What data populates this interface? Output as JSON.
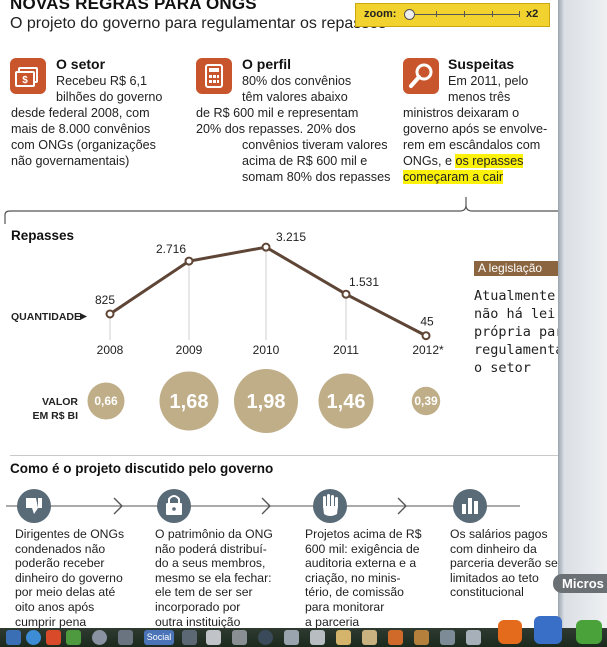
{
  "header": {
    "title": "NOVAS REGRAS PARA ONGS",
    "subtitle": "O projeto do governo para regulamentar os repasses"
  },
  "zoom": {
    "label": "zoom:",
    "max_label": "x2",
    "level_fraction": 0.0
  },
  "sections": [
    {
      "title": "O setor",
      "icon": "money-icon",
      "lines": [
        "Recebeu R$ 6,1",
        "bilhões do governo",
        "desde federal 2008, com",
        "mais de 8.000 convênios",
        "com ONGs (organizações",
        "não governamentais)"
      ]
    },
    {
      "title": "O perfil",
      "icon": "calculator-icon",
      "lines": [
        "80% dos convênios",
        "têm valores abaixo",
        "de R$ 600 mil e representam",
        "20% dos repasses. 20% dos",
        "convênios tiveram valores",
        "acima de R$ 600 mil e",
        "somam 80% dos repasses"
      ]
    },
    {
      "title": "Suspeitas",
      "icon": "magnifier-icon",
      "lines": [
        "Em 2011, pelo",
        "menos três",
        "ministros deixaram o",
        "governo após se envolve-",
        "rem em escândalos com"
      ],
      "line_pre_highlight": "ONGs, e ",
      "highlight_1": "os repasses",
      "highlight_2": "começaram a cair"
    }
  ],
  "chart_data": {
    "type": "line",
    "title": "Repasses",
    "x": [
      "2008",
      "2009",
      "2010",
      "2011",
      "2012*"
    ],
    "series": [
      {
        "name": "QUANTIDADE",
        "values": [
          825,
          2716,
          3215,
          1531,
          45
        ]
      }
    ],
    "value_labels": [
      "825",
      "2.716",
      "3.215",
      "1.531",
      "45"
    ],
    "ylim": [
      0,
      3400
    ],
    "bubbles": {
      "name": "VALOR EM R$ BI",
      "values": [
        0.66,
        1.68,
        1.98,
        1.46,
        0.39
      ],
      "labels": [
        "0,66",
        "1,68",
        "1,98",
        "1,46",
        "0,39"
      ]
    },
    "quantity_label": "QUANTIDADE",
    "valor_label_1": "VALOR",
    "valor_label_2": "EM R$ BI",
    "colors": {
      "line": "#5e4535",
      "bubble": "#bfae88",
      "bubble_text": "#ffffff"
    }
  },
  "legislation": {
    "label": "A legislação",
    "text_lines": [
      "Atualmente,",
      "não há lei",
      "própria para",
      "regulamentar",
      "o setor"
    ]
  },
  "steps": {
    "title": "Como é o projeto discutido pelo governo",
    "items": [
      {
        "icon": "thumbs-down-icon",
        "lines": [
          "Dirigentes de ONGs",
          "condenados não",
          "poderão receber",
          "dinheiro do governo",
          "por meio delas até",
          "oito anos após",
          "cumprir pena"
        ]
      },
      {
        "icon": "padlock-icon",
        "lines": [
          "O patrimônio da ONG",
          "não poderá distribuí-",
          "do a seus membros,",
          "mesmo se ela fechar:",
          "ele tem de ser ser",
          "incorporado por",
          "outra instituição"
        ]
      },
      {
        "icon": "raised-hand-icon",
        "lines": [
          "Projetos acima de R$",
          "600 mil: exigência de",
          "auditoria externa e a",
          "criação, no minis-",
          "tério, de comissão",
          "para monitorar",
          "a parceria"
        ]
      },
      {
        "icon": "bar-chart-icon",
        "lines": [
          "Os salários pagos",
          "com dinheiro da",
          "parceria deverão ser",
          "limitados ao teto",
          "constitucional"
        ]
      }
    ]
  },
  "taskbar": {
    "social_label": "Social",
    "tooltip": "Micros"
  },
  "colors": {
    "accent": "#c8552b",
    "circle": "#5a6b78",
    "highlight": "#fbf10a",
    "zoom_bg": "#f2d22e",
    "legislation_bg": "#8a6540"
  }
}
